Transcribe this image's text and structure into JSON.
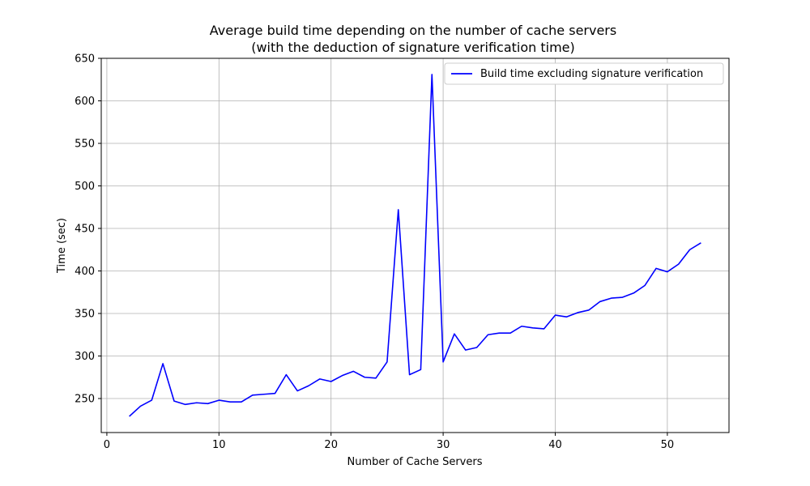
{
  "chart_data": {
    "type": "line",
    "title": "Average build time depending on the number of cache servers",
    "subtitle": "(with the deduction of signature verification time)",
    "xlabel": "Number of Cache Servers",
    "ylabel": "Time (sec)",
    "xlim": [
      -0.5,
      55.5
    ],
    "ylim": [
      210,
      650
    ],
    "xticks": [
      0,
      10,
      20,
      30,
      40,
      50
    ],
    "yticks": [
      250,
      300,
      350,
      400,
      450,
      500,
      550,
      600,
      650
    ],
    "grid": true,
    "legend_position": "top-right",
    "series": [
      {
        "name": "Build time excluding signature verification",
        "color": "#0000ff",
        "x": [
          2,
          3,
          4,
          5,
          6,
          7,
          8,
          9,
          10,
          11,
          12,
          13,
          14,
          15,
          16,
          17,
          18,
          19,
          20,
          21,
          22,
          23,
          24,
          25,
          26,
          27,
          28,
          29,
          30,
          31,
          32,
          33,
          34,
          35,
          36,
          37,
          38,
          39,
          40,
          41,
          42,
          43,
          44,
          45,
          46,
          47,
          48,
          49,
          50,
          51,
          52,
          53
        ],
        "y": [
          229,
          241,
          248,
          291,
          247,
          243,
          245,
          244,
          248,
          246,
          246,
          254,
          255,
          256,
          278,
          259,
          265,
          273,
          270,
          277,
          282,
          275,
          274,
          293,
          472,
          278,
          284,
          631,
          293,
          326,
          307,
          310,
          325,
          327,
          327,
          335,
          333,
          332,
          348,
          346,
          351,
          354,
          364,
          368,
          369,
          374,
          383,
          403,
          399,
          408,
          425,
          433
        ]
      }
    ]
  }
}
